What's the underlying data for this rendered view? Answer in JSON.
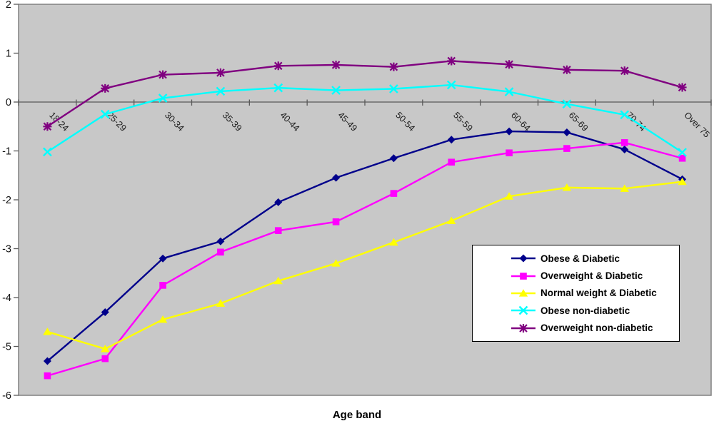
{
  "chart_data": {
    "type": "line",
    "title": "",
    "xlabel": "Age band",
    "ylabel": "",
    "categories": [
      "18-24",
      "25-29",
      "30-34",
      "35-39",
      "40-44",
      "45-49",
      "50-54",
      "55-59",
      "60-64",
      "65-69",
      "70-74",
      "Over 75"
    ],
    "yticks": [
      2,
      1,
      0,
      -1,
      -2,
      -3,
      -4,
      -5,
      -6
    ],
    "ylim": [
      -6,
      2
    ],
    "grid": "none",
    "legend_position": "middle-right",
    "plot_bg_color": "#c8c8c8",
    "plot_border_color": "#808080",
    "axis_color": "#595959",
    "series": [
      {
        "name": "Obese & Diabetic",
        "color": "#00008B",
        "marker": "diamond",
        "values": [
          -5.3,
          -4.3,
          -3.2,
          -2.85,
          -2.05,
          -1.55,
          -1.15,
          -0.77,
          -0.6,
          -0.62,
          -0.97,
          -1.58
        ]
      },
      {
        "name": "Overweight & Diabetic",
        "color": "#FF00FF",
        "marker": "square",
        "values": [
          -5.6,
          -5.25,
          -3.75,
          -3.07,
          -2.63,
          -2.45,
          -1.87,
          -1.23,
          -1.04,
          -0.95,
          -0.83,
          -1.15
        ]
      },
      {
        "name": "Normal weight & Diabetic",
        "color": "#FFFF00",
        "marker": "triangle",
        "values": [
          -4.7,
          -5.05,
          -4.45,
          -4.12,
          -3.66,
          -3.3,
          -2.87,
          -2.43,
          -1.93,
          -1.75,
          -1.77,
          -1.63
        ]
      },
      {
        "name": "Obese non-diabetic",
        "color": "#00FFFF",
        "marker": "x",
        "values": [
          -1.02,
          -0.25,
          0.08,
          0.22,
          0.29,
          0.24,
          0.27,
          0.35,
          0.21,
          -0.04,
          -0.26,
          -1.03
        ]
      },
      {
        "name": "Overweight non-diabetic",
        "color": "#800080",
        "marker": "star",
        "values": [
          -0.5,
          0.28,
          0.56,
          0.6,
          0.74,
          0.76,
          0.72,
          0.84,
          0.77,
          0.66,
          0.64,
          0.3
        ]
      }
    ]
  }
}
